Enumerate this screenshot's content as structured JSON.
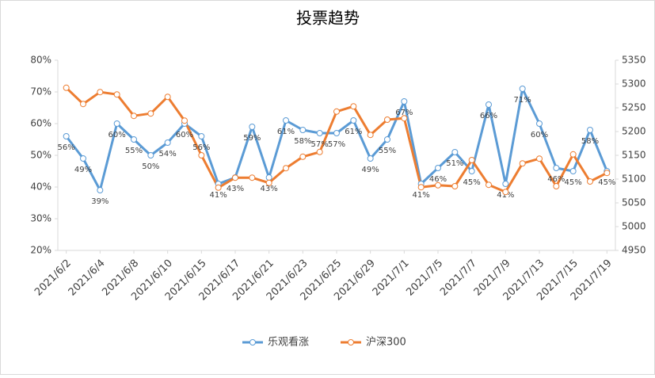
{
  "chart_data": {
    "type": "line",
    "title": "投票趋势",
    "categories": [
      "2021/6/2",
      null,
      "2021/6/4",
      null,
      "2021/6/8",
      null,
      "2021/6/10",
      null,
      "2021/6/15",
      null,
      "2021/6/17",
      null,
      "2021/6/21",
      null,
      "2021/6/23",
      null,
      "2021/6/25",
      null,
      "2021/6/29",
      null,
      "2021/7/1",
      null,
      "2021/7/5",
      null,
      "2021/7/7",
      null,
      "2021/7/9",
      null,
      "2021/7/13",
      null,
      "2021/7/15",
      null,
      "2021/7/19"
    ],
    "series": [
      {
        "name": "乐观看涨",
        "color": "#5b9bd5",
        "values": [
          56,
          49,
          39,
          60,
          55,
          50,
          54,
          60,
          56,
          41,
          43,
          59,
          43,
          61,
          58,
          57,
          57,
          61,
          49,
          55,
          67,
          41,
          46,
          51,
          45,
          66,
          41,
          71,
          60,
          46,
          45,
          58,
          45
        ],
        "value_labels": [
          "56%",
          "49%",
          "39%",
          "60%",
          "55%",
          "50%",
          "54%",
          "60%",
          "56%",
          "41%",
          "43%",
          "59%",
          "43%",
          "61%",
          "58%",
          "57%",
          "57%",
          "61%",
          "49%",
          "55%",
          "67%",
          "41%",
          "46%",
          "51%",
          "45%",
          "66%",
          "41%",
          "71%",
          "60%",
          "46%",
          "45%",
          "58%",
          "45%"
        ]
      },
      {
        "name": "沪深300",
        "color": "#ed7d31",
        "axis": "y2",
        "values": [
          5292,
          5258,
          5283,
          5278,
          5233,
          5238,
          5273,
          5223,
          5150,
          5082,
          5103,
          5103,
          5092,
          5123,
          5147,
          5157,
          5242,
          5253,
          5193,
          5225,
          5228,
          5083,
          5087,
          5085,
          5140,
          5088,
          5073,
          5133,
          5143,
          5085,
          5152,
          5095,
          5113
        ]
      }
    ],
    "ylim": [
      20,
      80
    ],
    "yticks": [
      {
        "value": 20,
        "label": "20%"
      },
      {
        "value": 30,
        "label": "30%"
      },
      {
        "value": 40,
        "label": "40%"
      },
      {
        "value": 50,
        "label": "50%"
      },
      {
        "value": 60,
        "label": "60%"
      },
      {
        "value": 70,
        "label": "70%"
      },
      {
        "value": 80,
        "label": "80%"
      }
    ],
    "y2lim": [
      4950,
      5350
    ],
    "y2ticks": [
      4950,
      5000,
      5050,
      5100,
      5150,
      5200,
      5250,
      5300,
      5350
    ],
    "legend": "bottom"
  }
}
